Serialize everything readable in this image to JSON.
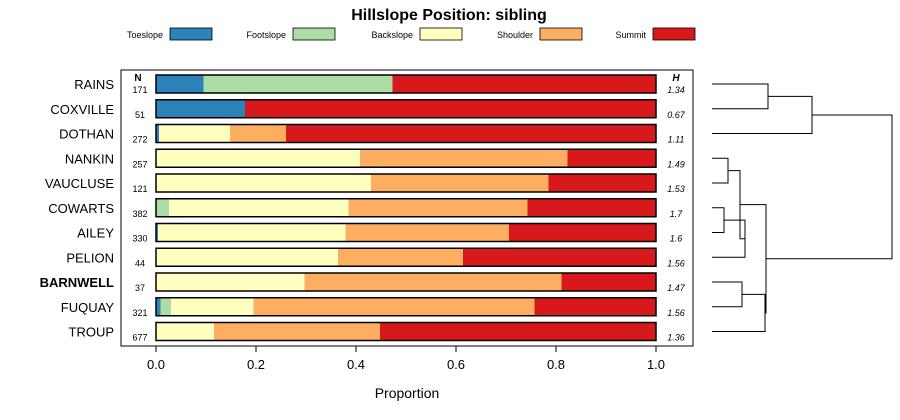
{
  "chart_data": {
    "type": "bar",
    "stacked": true,
    "orientation": "horizontal",
    "title": "Hillslope Position: sibling",
    "xlabel": "Proportion",
    "ylabel": "",
    "xlim": [
      0,
      1
    ],
    "x_ticks": [
      0.0,
      0.2,
      0.4,
      0.6,
      0.8,
      1.0
    ],
    "x_tick_labels": [
      "0.0",
      "0.2",
      "0.4",
      "0.6",
      "0.8",
      "1.0"
    ],
    "n_header": "N",
    "h_header": "H",
    "legend_position": "top",
    "legend": [
      {
        "name": "Toeslope",
        "color": "#2b83ba"
      },
      {
        "name": "Footslope",
        "color": "#abdda4"
      },
      {
        "name": "Backslope",
        "color": "#ffffbf"
      },
      {
        "name": "Shoulder",
        "color": "#fdae61"
      },
      {
        "name": "Summit",
        "color": "#d7191c"
      }
    ],
    "categories": [
      "RAINS",
      "COXVILLE",
      "DOTHAN",
      "NANKIN",
      "VAUCLUSE",
      "COWARTS",
      "AILEY",
      "PELION",
      "BARNWELL",
      "FUQUAY",
      "TROUP"
    ],
    "highlight": "BARNWELL",
    "n": [
      "171",
      "51",
      "272",
      "257",
      "121",
      "382",
      "330",
      "44",
      "37",
      "321",
      "677"
    ],
    "h": [
      "1.34",
      "0.67",
      "1.11",
      "1.49",
      "1.53",
      "1.7",
      "1.6",
      "1.56",
      "1.47",
      "1.56",
      "1.36"
    ],
    "series": [
      {
        "name": "Toeslope",
        "values": [
          0.095,
          0.178,
          0.006,
          0.0,
          0.0,
          0.0,
          0.004,
          0.0,
          0.0,
          0.009,
          0.0
        ]
      },
      {
        "name": "Footslope",
        "values": [
          0.378,
          0.0,
          0.0,
          0.0,
          0.0,
          0.026,
          0.0,
          0.0,
          0.0,
          0.021,
          0.0
        ]
      },
      {
        "name": "Backslope",
        "values": [
          0.0,
          0.0,
          0.142,
          0.408,
          0.43,
          0.359,
          0.375,
          0.364,
          0.297,
          0.165,
          0.116
        ]
      },
      {
        "name": "Shoulder",
        "values": [
          0.0,
          0.0,
          0.112,
          0.415,
          0.355,
          0.358,
          0.327,
          0.25,
          0.514,
          0.562,
          0.332
        ]
      },
      {
        "name": "Summit",
        "values": [
          0.527,
          0.822,
          0.74,
          0.177,
          0.215,
          0.257,
          0.294,
          0.386,
          0.189,
          0.243,
          0.552
        ]
      }
    ]
  }
}
